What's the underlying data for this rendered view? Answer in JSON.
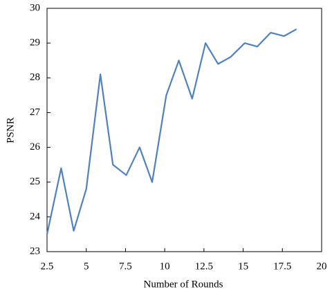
{
  "chart_data": {
    "type": "line",
    "x_label": "Number of Rounds",
    "y_label": "PSNR",
    "x": [
      2.5,
      3.4,
      4.2,
      5.0,
      5.9,
      6.7,
      7.55,
      8.4,
      9.2,
      10.1,
      10.9,
      11.75,
      12.6,
      13.4,
      14.2,
      15.1,
      15.9,
      16.75,
      17.6,
      18.4
    ],
    "series": [
      {
        "name": "PSNR",
        "color": "#4f81bd",
        "values": [
          23.5,
          25.4,
          23.6,
          24.8,
          28.1,
          25.5,
          25.2,
          26.0,
          25.0,
          27.5,
          28.5,
          27.4,
          29.0,
          28.4,
          28.6,
          29.0,
          28.9,
          29.3,
          29.2,
          29.4
        ]
      }
    ],
    "xlim": [
      2.5,
      20
    ],
    "xticks": [
      2.5,
      5,
      7.5,
      10,
      12.5,
      15,
      17.5,
      20
    ],
    "ylim": [
      23,
      30
    ],
    "yticks": [
      23,
      24,
      25,
      26,
      27,
      28,
      29,
      30
    ]
  }
}
